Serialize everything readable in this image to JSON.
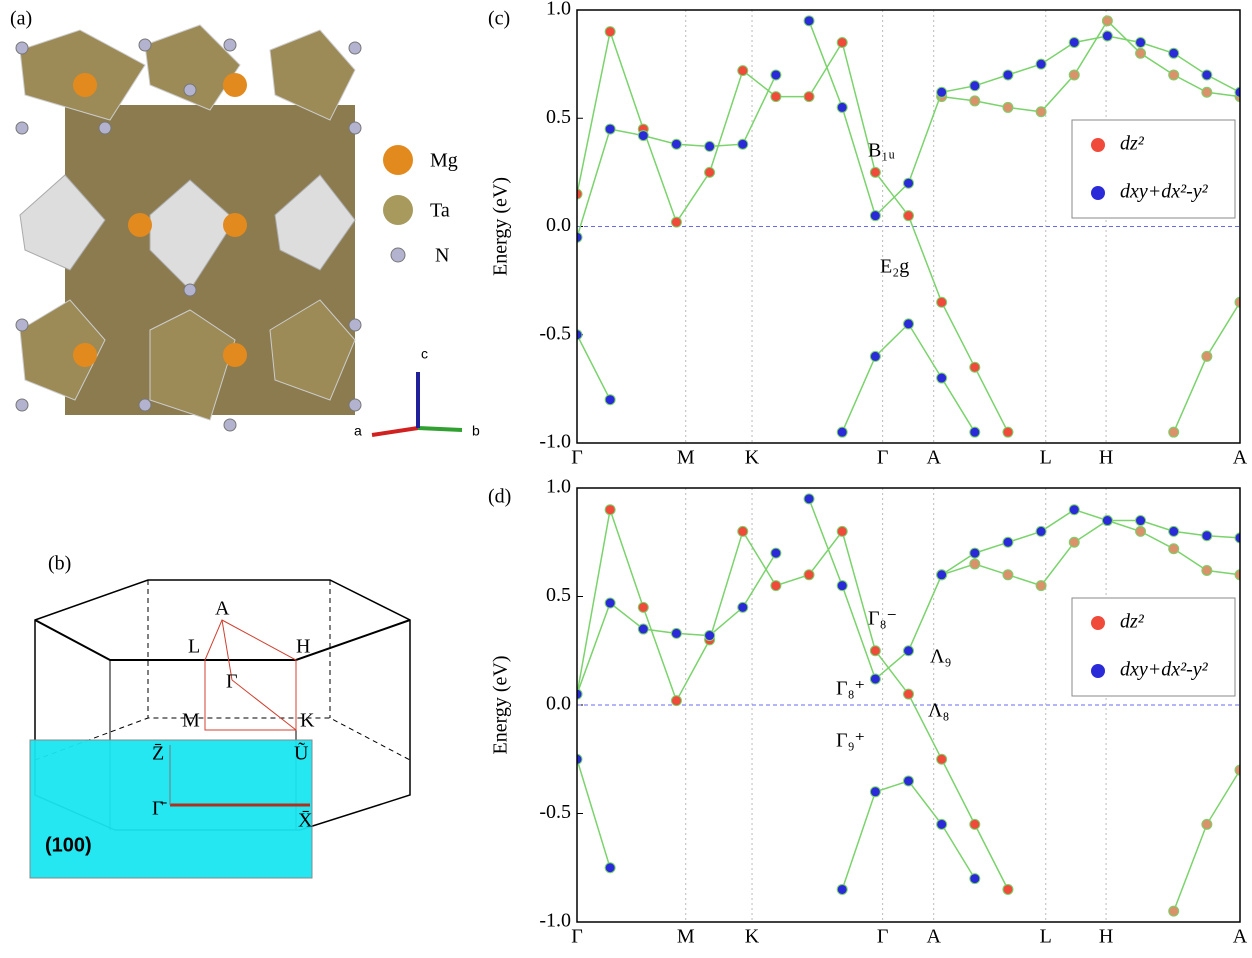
{
  "panels": {
    "a": {
      "label": "(a)",
      "legend": [
        "Mg",
        "Ta",
        "N"
      ],
      "axes": [
        "a",
        "b",
        "c"
      ]
    },
    "b": {
      "label": "(b)",
      "points": [
        "A",
        "L",
        "H",
        "Γ",
        "M",
        "K",
        "Z̄",
        "Ũ",
        "Γ̄",
        "X̄"
      ],
      "surface": "(100)"
    }
  },
  "chart_data": [
    {
      "type": "line",
      "panel": "(c)",
      "y_label": "Energy (eV)",
      "x": [
        0,
        0.05,
        0.1,
        0.15,
        0.2,
        0.25,
        0.3,
        0.35,
        0.4,
        0.45,
        0.5,
        0.55,
        0.6,
        0.65,
        0.7,
        0.75,
        0.8,
        0.85,
        0.9,
        0.95,
        1
      ],
      "xlim": [
        0,
        1
      ],
      "xticks": [
        {
          "value": 0,
          "label": "Γ"
        },
        {
          "value": 0.164,
          "label": "M"
        },
        {
          "value": 0.264,
          "label": "K"
        },
        {
          "value": 0.461,
          "label": "Γ"
        },
        {
          "value": 0.538,
          "label": "A"
        },
        {
          "value": 0.707,
          "label": "L"
        },
        {
          "value": 0.798,
          "label": "H"
        },
        {
          "value": 1,
          "label": "A"
        }
      ],
      "ylim": [
        -1,
        1
      ],
      "yticks": [
        {
          "value": -1,
          "label": "-1.0"
        },
        -0.5,
        {
          "value": 0,
          "label": "0.0"
        },
        0.5,
        {
          "value": 1,
          "label": "1.0"
        }
      ],
      "fermi_level": 0,
      "line_color": "#7ad36b",
      "legend": [
        {
          "name": "dz²",
          "color": "#f04a3a"
        },
        {
          "name": "dxy+dx²-y²",
          "color": "#2a2ad8"
        }
      ],
      "bands": [
        {
          "color": "#f04a3a",
          "values": [
            0.15,
            0.9,
            0.45,
            0.02,
            0.25,
            0.72,
            0.6,
            0.6,
            0.85,
            0.25,
            0.05,
            -0.35,
            -0.65,
            -0.95,
            null,
            null,
            null,
            null,
            null,
            null,
            null
          ]
        },
        {
          "color": "#d9926a",
          "values": [
            null,
            null,
            null,
            null,
            null,
            null,
            null,
            null,
            null,
            null,
            null,
            0.6,
            0.58,
            0.55,
            0.53,
            0.7,
            0.95,
            0.8,
            0.7,
            0.62,
            0.6
          ]
        },
        {
          "color": "#d9926a",
          "values": [
            null,
            null,
            null,
            null,
            null,
            null,
            null,
            null,
            null,
            null,
            null,
            null,
            null,
            null,
            null,
            null,
            null,
            null,
            -0.95,
            -0.6,
            -0.35
          ]
        },
        {
          "color": "#2a2ad8",
          "values": [
            -0.05,
            0.45,
            0.42,
            0.38,
            0.37,
            0.38,
            0.7,
            null,
            null,
            null,
            null,
            null,
            null,
            null,
            null,
            null,
            null,
            null,
            null,
            null,
            null
          ]
        },
        {
          "color": "#2a2ad8",
          "values": [
            null,
            null,
            null,
            null,
            null,
            null,
            null,
            0.95,
            0.55,
            0.05,
            0.2,
            0.62,
            0.65,
            0.7,
            0.75,
            0.85,
            0.88,
            0.85,
            0.8,
            0.7,
            0.62
          ]
        },
        {
          "color": "#2a2ad8",
          "values": [
            -0.5,
            -0.8,
            null,
            null,
            null,
            null,
            null,
            null,
            -0.95,
            -0.6,
            -0.45,
            -0.7,
            -0.95,
            null,
            null,
            null,
            null,
            null,
            null,
            null,
            null
          ]
        }
      ],
      "annotations": [
        "B₁ᵤ",
        "E₂g"
      ]
    },
    {
      "type": "line",
      "panel": "(d)",
      "y_label": "Energy (eV)",
      "x": [
        0,
        0.05,
        0.1,
        0.15,
        0.2,
        0.25,
        0.3,
        0.35,
        0.4,
        0.45,
        0.5,
        0.55,
        0.6,
        0.65,
        0.7,
        0.75,
        0.8,
        0.85,
        0.9,
        0.95,
        1
      ],
      "xlim": [
        0,
        1
      ],
      "xticks": [
        {
          "value": 0,
          "label": "Γ"
        },
        {
          "value": 0.164,
          "label": "M"
        },
        {
          "value": 0.264,
          "label": "K"
        },
        {
          "value": 0.461,
          "label": "Γ"
        },
        {
          "value": 0.538,
          "label": "A"
        },
        {
          "value": 0.707,
          "label": "L"
        },
        {
          "value": 0.798,
          "label": "H"
        },
        {
          "value": 1,
          "label": "A"
        }
      ],
      "ylim": [
        -1,
        1
      ],
      "yticks": [
        {
          "value": -1,
          "label": "-1.0"
        },
        -0.5,
        {
          "value": 0,
          "label": "0.0"
        },
        0.5,
        {
          "value": 1,
          "label": "1.0"
        }
      ],
      "fermi_level": 0,
      "line_color": "#7ad36b",
      "legend": [
        {
          "name": "dz²",
          "color": "#f04a3a"
        },
        {
          "name": "dxy+dx²-y²",
          "color": "#2a2ad8"
        }
      ],
      "bands": [
        {
          "color": "#f04a3a",
          "values": [
            0.05,
            0.9,
            0.45,
            0.02,
            0.3,
            0.8,
            0.55,
            0.6,
            0.8,
            0.25,
            0.05,
            -0.25,
            -0.55,
            -0.85,
            null,
            null,
            null,
            null,
            null,
            null,
            null
          ]
        },
        {
          "color": "#d9926a",
          "values": [
            null,
            null,
            null,
            null,
            null,
            null,
            null,
            null,
            null,
            null,
            null,
            0.6,
            0.65,
            0.6,
            0.55,
            0.75,
            0.85,
            0.8,
            0.72,
            0.62,
            0.6
          ]
        },
        {
          "color": "#d9926a",
          "values": [
            null,
            null,
            null,
            null,
            null,
            null,
            null,
            null,
            null,
            null,
            null,
            null,
            null,
            null,
            null,
            null,
            null,
            null,
            -0.95,
            -0.55,
            -0.3
          ]
        },
        {
          "color": "#2a2ad8",
          "values": [
            0.05,
            0.47,
            0.35,
            0.33,
            0.32,
            0.45,
            0.7,
            null,
            null,
            null,
            null,
            null,
            null,
            null,
            null,
            null,
            null,
            null,
            null,
            null,
            null
          ]
        },
        {
          "color": "#2a2ad8",
          "values": [
            null,
            null,
            null,
            null,
            null,
            null,
            null,
            0.95,
            0.55,
            0.12,
            0.25,
            0.6,
            0.7,
            0.75,
            0.8,
            0.9,
            0.85,
            0.85,
            0.8,
            0.78,
            0.77
          ]
        },
        {
          "color": "#2a2ad8",
          "values": [
            -0.25,
            -0.75,
            null,
            null,
            null,
            null,
            null,
            null,
            -0.85,
            -0.4,
            -0.35,
            -0.55,
            -0.8,
            null,
            null,
            null,
            null,
            null,
            null,
            null,
            null
          ]
        }
      ],
      "annotations": [
        "Γ₈⁻",
        "Λ₉",
        "Γ₈⁺",
        "Λ₈",
        "Γ₉⁺"
      ]
    }
  ]
}
